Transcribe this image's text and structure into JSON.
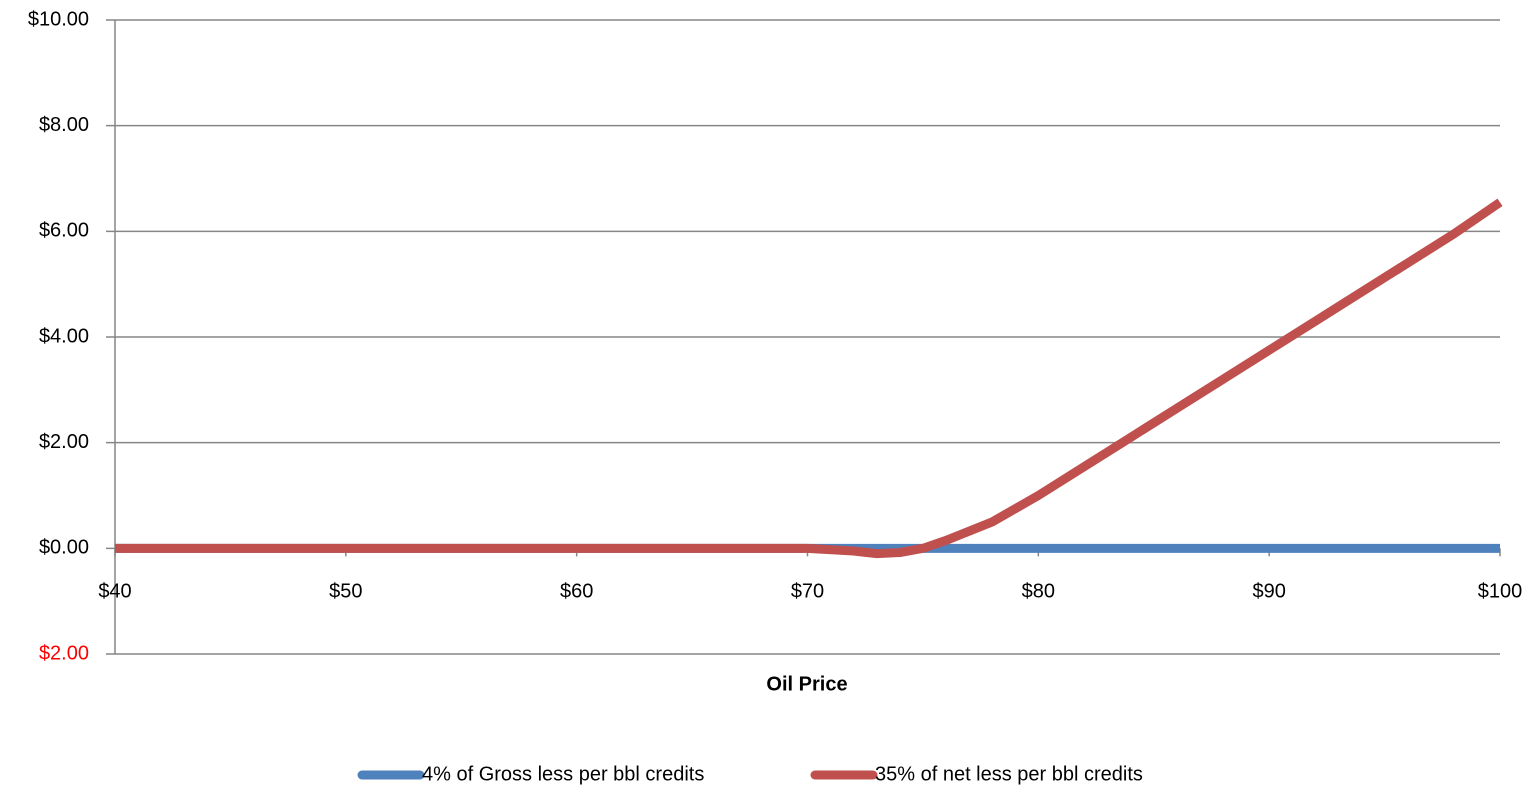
{
  "chart_data": {
    "type": "line",
    "x_label": "Oil Price",
    "x": [
      40,
      45,
      50,
      55,
      60,
      65,
      70,
      72,
      73,
      74,
      75,
      76,
      78,
      80,
      82,
      84,
      86,
      88,
      90,
      92,
      94,
      96,
      98,
      100
    ],
    "series": [
      {
        "name": "4% of Gross less per bbl credits",
        "color": "#4f81bd",
        "values": [
          0,
          0,
          0,
          0,
          0,
          0,
          0,
          0,
          0,
          0,
          0,
          0,
          0,
          0,
          0,
          0,
          0,
          0,
          0,
          0,
          0,
          0,
          0,
          0
        ]
      },
      {
        "name": "35% of net less per bbl credits",
        "color": "#c0504d",
        "values": [
          0,
          0,
          0,
          0,
          0,
          0,
          0,
          -0.05,
          -0.1,
          -0.08,
          0,
          0.15,
          0.5,
          1.0,
          1.55,
          2.1,
          2.65,
          3.2,
          3.75,
          4.3,
          4.85,
          5.4,
          5.95,
          6.55
        ]
      }
    ],
    "xlim": [
      40,
      100
    ],
    "xticks": [
      {
        "value": 40,
        "label": "$40"
      },
      {
        "value": 50,
        "label": "$50"
      },
      {
        "value": 60,
        "label": "$60"
      },
      {
        "value": 70,
        "label": "$70"
      },
      {
        "value": 80,
        "label": "$80"
      },
      {
        "value": 90,
        "label": "$90"
      },
      {
        "value": 100,
        "label": "$100"
      }
    ],
    "ylim": [
      -2,
      10
    ],
    "yticks": [
      {
        "value": -2,
        "label": "$2.00"
      },
      {
        "value": 0,
        "label": "$0.00"
      },
      {
        "value": 2,
        "label": "$2.00"
      },
      {
        "value": 4,
        "label": "$4.00"
      },
      {
        "value": 6,
        "label": "$6.00"
      },
      {
        "value": 8,
        "label": "$8.00"
      },
      {
        "value": 10,
        "label": "$10.00"
      }
    ],
    "negative_tick_color": "#ff0000",
    "grid": true,
    "legend": "bottom"
  }
}
